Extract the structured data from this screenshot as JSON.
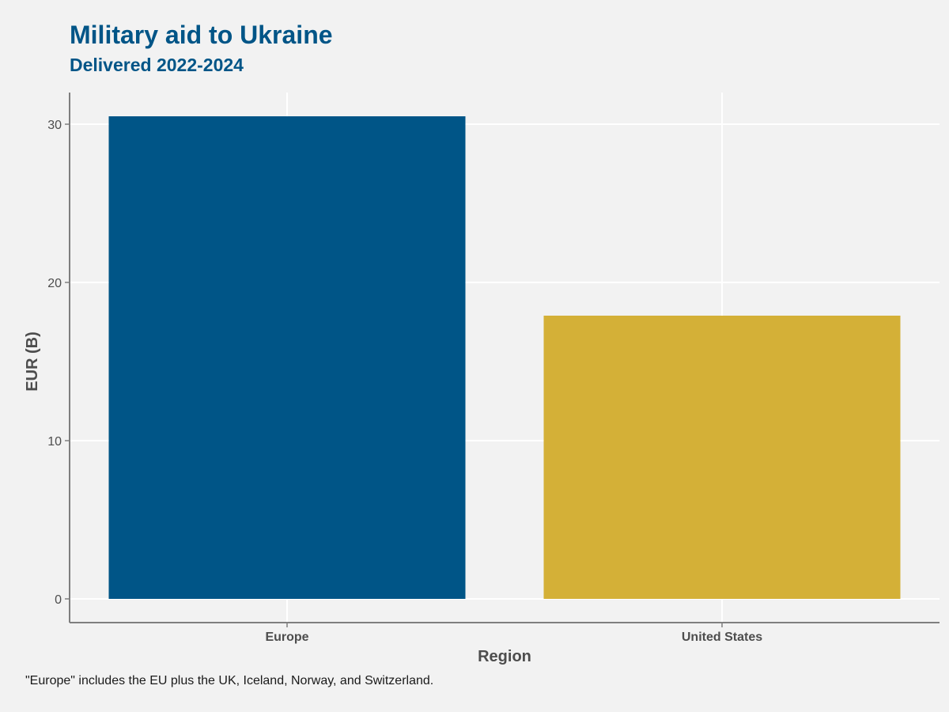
{
  "colors": {
    "background": "#f2f2f2",
    "title": "#005587",
    "grid": "#ffffff",
    "axis": "#7f7f7f",
    "text": "#4d4d4d"
  },
  "chart_data": {
    "type": "bar",
    "title": "Military aid to Ukraine",
    "subtitle": "Delivered 2022-2024",
    "xlabel": "Region",
    "ylabel": "EUR (B)",
    "categories": [
      "Europe",
      "United States"
    ],
    "values": [
      30.5,
      17.9
    ],
    "bar_colors": [
      "#005587",
      "#d4b037"
    ],
    "yticks": [
      0,
      10,
      20,
      30
    ],
    "ylim": [
      -1.5,
      32
    ],
    "grid": true,
    "legend": "none",
    "caption": "\"Europe\" includes the EU plus the UK, Iceland, Norway, and Switzerland."
  }
}
